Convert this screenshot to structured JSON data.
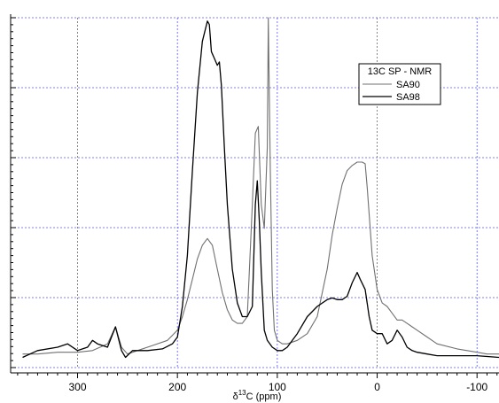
{
  "chart_data": {
    "type": "line",
    "title": "",
    "xlabel": "δ13C (ppm)",
    "xlabel_prefix": "δ",
    "xlabel_sup": "13",
    "xlabel_suffix": "C (ppm)",
    "ylabel": "",
    "x_reversed": true,
    "xlim": [
      367,
      -122
    ],
    "ylim": [
      -0.03,
      1.0
    ],
    "x_ticks": [
      300,
      200,
      100,
      0,
      -100
    ],
    "x_tick_labels": [
      "300",
      "200",
      "100",
      "0",
      "-100"
    ],
    "grid": true,
    "legend": {
      "title": "13C SP - NMR",
      "placement": "upper-right"
    },
    "colors": {
      "SA90": "#707070",
      "SA98": "#000000",
      "grid": "#5a5ae0"
    },
    "series": [
      {
        "name": "SA90",
        "x": [
          355,
          340,
          320,
          300,
          285,
          270,
          262,
          256,
          250,
          240,
          225,
          210,
          200,
          195,
          190,
          185,
          180,
          175,
          170,
          165,
          160,
          155,
          150,
          145,
          140,
          135,
          130,
          125,
          122,
          119,
          116,
          113,
          110,
          109,
          107,
          105,
          103,
          100,
          95,
          90,
          80,
          70,
          60,
          50,
          45,
          40,
          35,
          30,
          25,
          20,
          15,
          12,
          10,
          5,
          0,
          -5,
          -10,
          -15,
          -20,
          -25,
          -30,
          -35,
          -40,
          -50,
          -60,
          -80,
          -100,
          -110,
          -122
        ],
        "y": [
          0.01,
          0.01,
          0.015,
          0.015,
          0.02,
          0.04,
          0.09,
          0.03,
          0.01,
          0.02,
          0.035,
          0.05,
          0.08,
          0.12,
          0.17,
          0.23,
          0.29,
          0.33,
          0.35,
          0.33,
          0.26,
          0.19,
          0.14,
          0.11,
          0.1,
          0.1,
          0.12,
          0.45,
          0.66,
          0.68,
          0.45,
          0.38,
          0.62,
          1.0,
          0.55,
          0.2,
          0.08,
          0.05,
          0.04,
          0.04,
          0.05,
          0.07,
          0.12,
          0.26,
          0.36,
          0.44,
          0.51,
          0.55,
          0.565,
          0.575,
          0.575,
          0.57,
          0.5,
          0.3,
          0.2,
          0.16,
          0.15,
          0.13,
          0.11,
          0.11,
          0.1,
          0.09,
          0.08,
          0.06,
          0.04,
          0.025,
          0.015,
          0.01,
          0.01
        ]
      },
      {
        "name": "SA98",
        "x": [
          355,
          340,
          320,
          310,
          300,
          290,
          285,
          280,
          270,
          262,
          256,
          252,
          245,
          230,
          215,
          205,
          200,
          195,
          190,
          185,
          180,
          175,
          170,
          168,
          166,
          163,
          160,
          158,
          156,
          153,
          150,
          145,
          140,
          135,
          130,
          125,
          122,
          120,
          118,
          116,
          113,
          110,
          105,
          100,
          95,
          90,
          80,
          70,
          60,
          50,
          45,
          40,
          35,
          30,
          25,
          20,
          17,
          12,
          8,
          5,
          0,
          -5,
          -10,
          -15,
          -20,
          -25,
          -30,
          -35,
          -40,
          -50,
          -60,
          -80,
          -100,
          -122
        ],
        "y": [
          0.0,
          0.02,
          0.03,
          0.04,
          0.02,
          0.03,
          0.05,
          0.04,
          0.03,
          0.09,
          0.02,
          0.0,
          0.02,
          0.02,
          0.025,
          0.04,
          0.06,
          0.15,
          0.3,
          0.55,
          0.78,
          0.93,
          0.99,
          0.98,
          0.9,
          0.88,
          0.86,
          0.87,
          0.8,
          0.62,
          0.45,
          0.26,
          0.16,
          0.12,
          0.12,
          0.15,
          0.45,
          0.52,
          0.4,
          0.25,
          0.08,
          0.05,
          0.03,
          0.02,
          0.02,
          0.03,
          0.07,
          0.12,
          0.15,
          0.17,
          0.175,
          0.17,
          0.17,
          0.18,
          0.22,
          0.25,
          0.23,
          0.2,
          0.12,
          0.08,
          0.07,
          0.07,
          0.04,
          0.05,
          0.08,
          0.06,
          0.03,
          0.02,
          0.015,
          0.01,
          0.005,
          0.005,
          0.005,
          0.0
        ]
      }
    ]
  }
}
